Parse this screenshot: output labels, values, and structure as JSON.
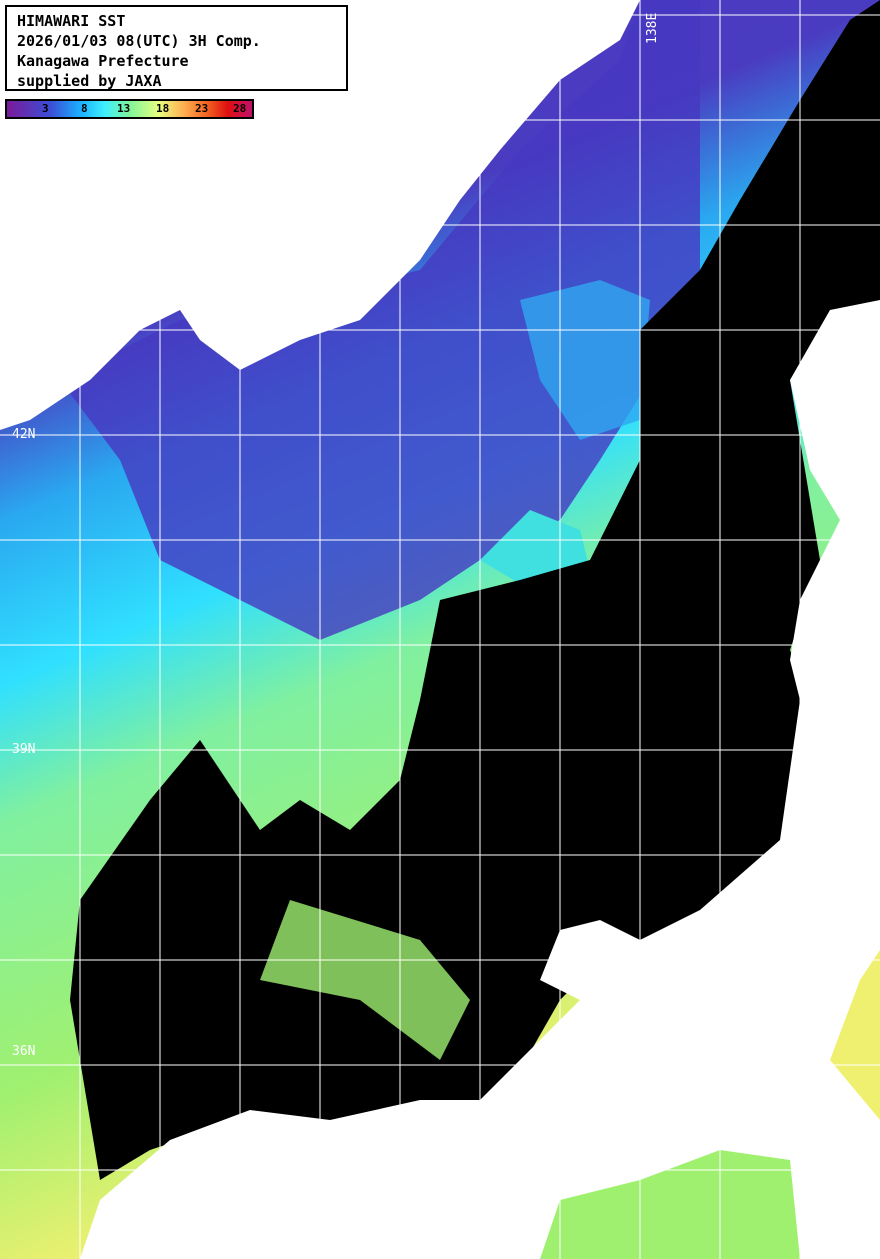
{
  "title": {
    "lines": [
      "HIMAWARI SST",
      "2026/01/03 08(UTC) 3H Comp.",
      "Kanagawa Prefecture",
      "supplied by JAXA"
    ]
  },
  "colorbar": {
    "ticks": [
      "3",
      "8",
      "13",
      "18",
      "23",
      "28"
    ],
    "colors": [
      "#7a1a9a",
      "#3a4fd8",
      "#1ab0ff",
      "#3ff0ff",
      "#7ff59a",
      "#e8ff80",
      "#ffb050",
      "#f06020",
      "#e01010",
      "#c0106a"
    ]
  },
  "grid_labels": {
    "lon": [
      "138E"
    ],
    "lat": [
      "42N",
      "39N",
      "36N"
    ]
  },
  "colors": {
    "land": "#ffffff",
    "cloud": "#000000",
    "grid": "#ffffff"
  }
}
